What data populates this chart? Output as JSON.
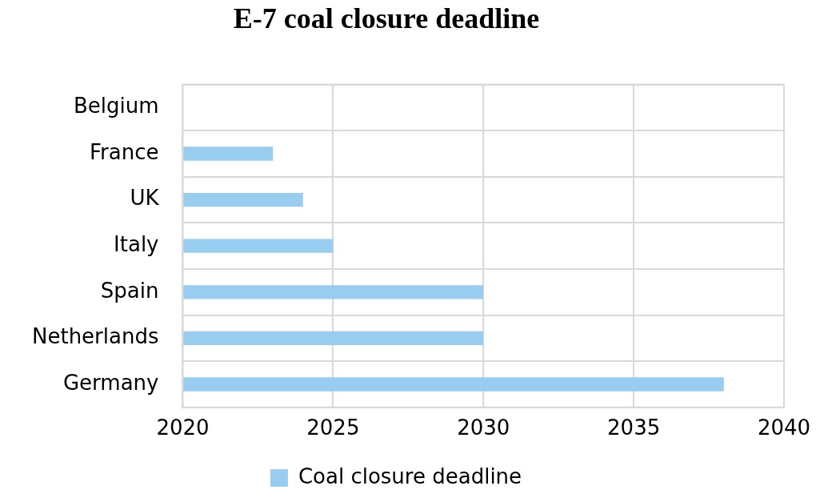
{
  "chart_data": {
    "type": "bar",
    "orientation": "horizontal",
    "title": "E-7 coal closure deadline",
    "categories": [
      "Belgium",
      "France",
      "UK",
      "Italy",
      "Spain",
      "Netherlands",
      "Germany"
    ],
    "series": [
      {
        "name": "Coal closure deadline",
        "color": "#99cdf0",
        "values": [
          null,
          2023,
          2024,
          2025,
          2030,
          2030,
          2038
        ]
      }
    ],
    "xlim": [
      2020,
      2040
    ],
    "xticks": [
      2020,
      2025,
      2030,
      2035,
      2040
    ],
    "grid": true,
    "legend": "bottom"
  }
}
